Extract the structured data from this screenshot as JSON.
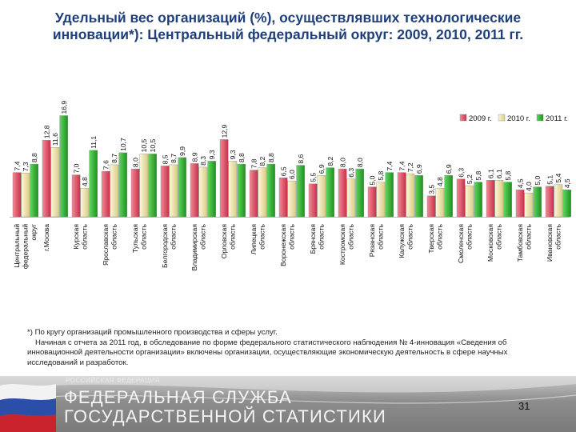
{
  "title_line1": "Удельный вес организаций (%), осуществлявших технологические",
  "title_line2": "инновации*): Центральный федеральный округ: 2009, 2010, 2011 гг.",
  "chart_data": {
    "type": "bar",
    "ylim": [
      0,
      17.5
    ],
    "categories": [
      "Центральный федеральный округ",
      "г.Москва",
      "Курская область",
      "Ярославская область",
      "Тульская область",
      "Белгородская область",
      "Владимирская область",
      "Орловская область",
      "Липецкая область",
      "Воронежская область",
      "Брянская область",
      "Костромская область",
      "Рязанская область",
      "Калужская область",
      "Тверская область",
      "Смоленская область",
      "Московская область",
      "Тамбовская область",
      "Ивановская область"
    ],
    "category_labels": [
      [
        "Центральный",
        "федеральный",
        "округ"
      ],
      [
        "г.Москва"
      ],
      [
        "Курская",
        "область"
      ],
      [
        "Ярославская",
        "область"
      ],
      [
        "Тульская",
        "область"
      ],
      [
        "Белгородская",
        "область"
      ],
      [
        "Владимирская",
        "область"
      ],
      [
        "Орловская",
        "область"
      ],
      [
        "Липецкая",
        "область"
      ],
      [
        "Воронежская",
        "область"
      ],
      [
        "Брянская",
        "область"
      ],
      [
        "Костромская",
        "область"
      ],
      [
        "Рязанская",
        "область"
      ],
      [
        "Калужская",
        "область"
      ],
      [
        "Тверская",
        "область"
      ],
      [
        "Смоленская",
        "область"
      ],
      [
        "Московская",
        "область"
      ],
      [
        "Тамбовская",
        "область"
      ],
      [
        "Ивановская",
        "область"
      ]
    ],
    "series": [
      {
        "name": "2009 г.",
        "color": "#e3546a",
        "values": [
          7.4,
          12.8,
          7.0,
          7.6,
          8.0,
          8.5,
          8.9,
          12.9,
          7.8,
          6.5,
          5.5,
          8.0,
          5.0,
          7.4,
          3.5,
          6.3,
          6.1,
          4.5,
          5.1
        ],
        "labels": [
          "7,4",
          "12,8",
          "7,0",
          "7,6",
          "8,0",
          "8,5",
          "8,9",
          "12,9",
          "7,8",
          "6,5",
          "5,5",
          "8,0",
          "5,0",
          "7,4",
          "3,5",
          "6,3",
          "6,1",
          "4,5",
          "5,1"
        ]
      },
      {
        "name": "2010 г.",
        "color": "#ece2a8",
        "values": [
          7.3,
          11.6,
          4.8,
          8.7,
          10.5,
          8.7,
          8.3,
          9.3,
          8.2,
          6.0,
          6.9,
          6.3,
          5.8,
          7.2,
          4.8,
          5.2,
          6.1,
          4.0,
          5.4
        ],
        "labels": [
          "7,3",
          "11,6",
          "4,8",
          "8,7",
          "10,5",
          "8,7",
          "8,3",
          "9,3",
          "8,2",
          "6,0",
          "6,9",
          "6,3",
          "5,8",
          "7,2",
          "4,8",
          "5,2",
          "6,1",
          "4,0",
          "5,4"
        ]
      },
      {
        "name": "2011 г.",
        "color": "#2eb82e",
        "values": [
          8.8,
          16.9,
          11.1,
          10.7,
          10.5,
          9.9,
          9.3,
          8.8,
          8.8,
          8.6,
          8.2,
          8.0,
          7.4,
          6.9,
          6.9,
          5.8,
          5.8,
          5.0,
          4.5
        ],
        "labels": [
          "8,8",
          "16,9",
          "11,1",
          "10,7",
          "10,5",
          "9,9",
          "9,3",
          "8,8",
          "8,8",
          "8,6",
          "8,2",
          "8,0",
          "7,4",
          "6,9",
          "6,9",
          "5,8",
          "5,8",
          "5,0",
          "4,5"
        ]
      }
    ]
  },
  "footnote": {
    "line1": "*) По кругу организаций промышленного производства и сферы услуг.",
    "line2": "Начиная с отчета за 2011 год, в обследование по форме федерального статистического наблюдения № 4-инновация «Сведения об",
    "line3": "инновационной деятельности организации» включены организации, осуществляющие экономическую деятельность в сфере научных",
    "line4": "исследований и разработок."
  },
  "footer": {
    "agency_small": "РОССИЙСКАЯ ФЕДЕРАЦИЯ",
    "agency_line1": "ФЕДЕРАЛЬНАЯ СЛУЖБА",
    "agency_line2": "ГОСУДАРСТВЕННОЙ СТАТИСТИКИ",
    "page_number": "31"
  },
  "colors": {
    "title": "#1f3f7a",
    "s2009": "#e3546a",
    "s2010": "#ece2a8",
    "s2011": "#2eb82e"
  }
}
